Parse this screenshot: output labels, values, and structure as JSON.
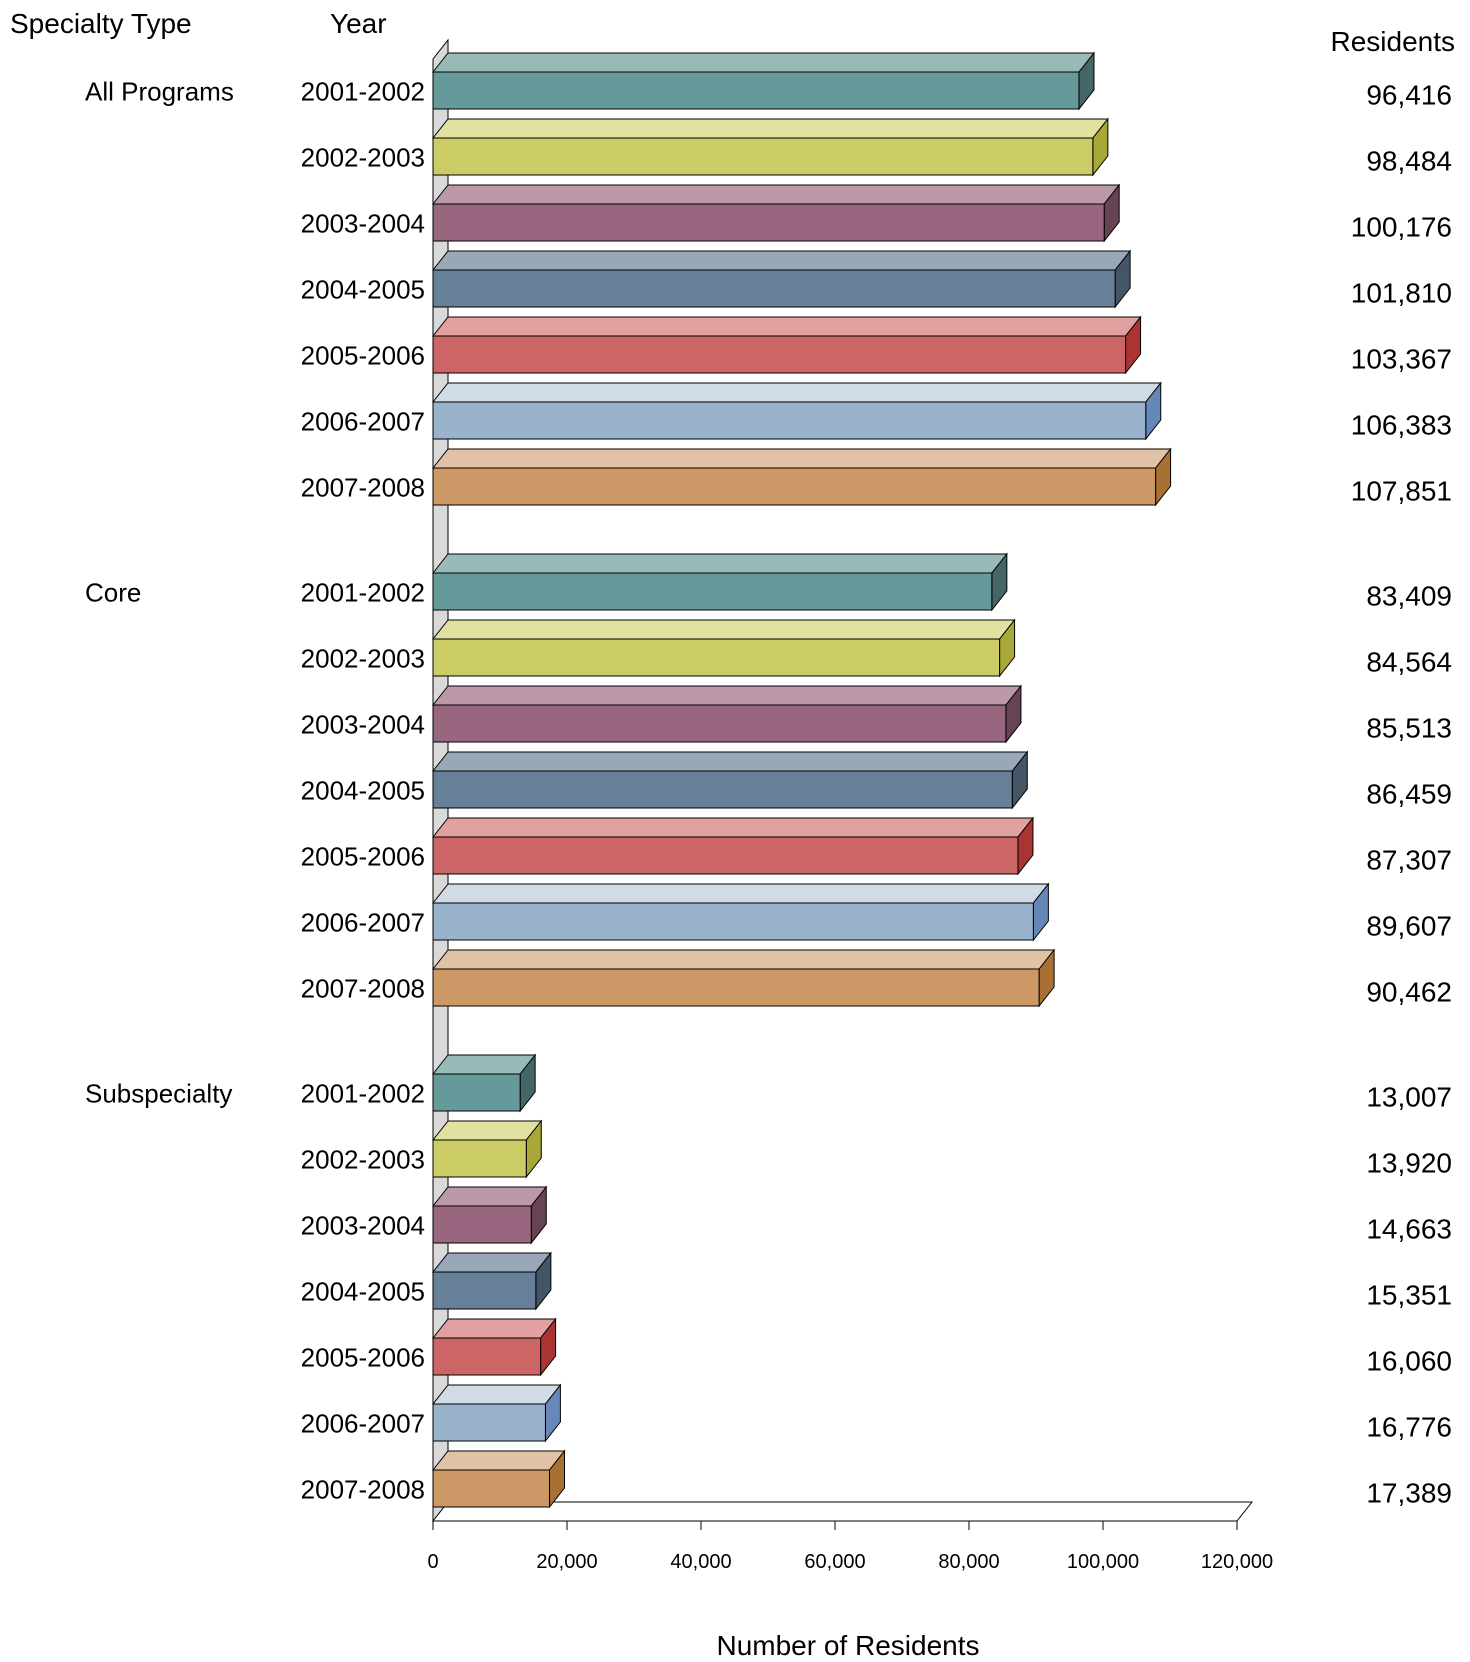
{
  "chart_data": {
    "type": "bar",
    "orientation": "horizontal",
    "style": "3d",
    "header": {
      "specialty_type": "Specialty Type",
      "year": "Year",
      "residents": "Residents"
    },
    "xlabel": "Number of Residents",
    "xlim": [
      0,
      120000
    ],
    "xticks": [
      "0",
      "20,000",
      "40,000",
      "60,000",
      "80,000",
      "100,000",
      "120,000"
    ],
    "grid": false,
    "legend": "none",
    "groups": [
      {
        "name": "All Programs",
        "bars": [
          {
            "year": "2001-2002",
            "value": 96416,
            "label": "96,416"
          },
          {
            "year": "2002-2003",
            "value": 98484,
            "label": "98,484"
          },
          {
            "year": "2003-2004",
            "value": 100176,
            "label": "100,176"
          },
          {
            "year": "2004-2005",
            "value": 101810,
            "label": "101,810"
          },
          {
            "year": "2005-2006",
            "value": 103367,
            "label": "103,367"
          },
          {
            "year": "2006-2007",
            "value": 106383,
            "label": "106,383"
          },
          {
            "year": "2007-2008",
            "value": 107851,
            "label": "107,851"
          }
        ]
      },
      {
        "name": "Core",
        "bars": [
          {
            "year": "2001-2002",
            "value": 83409,
            "label": "83,409"
          },
          {
            "year": "2002-2003",
            "value": 84564,
            "label": "84,564"
          },
          {
            "year": "2003-2004",
            "value": 85513,
            "label": "85,513"
          },
          {
            "year": "2004-2005",
            "value": 86459,
            "label": "86,459"
          },
          {
            "year": "2005-2006",
            "value": 87307,
            "label": "87,307"
          },
          {
            "year": "2006-2007",
            "value": 89607,
            "label": "89,607"
          },
          {
            "year": "2007-2008",
            "value": 90462,
            "label": "90,462"
          }
        ]
      },
      {
        "name": "Subspecialty",
        "bars": [
          {
            "year": "2001-2002",
            "value": 13007,
            "label": "13,007"
          },
          {
            "year": "2002-2003",
            "value": 13920,
            "label": "13,920"
          },
          {
            "year": "2003-2004",
            "value": 14663,
            "label": "14,663"
          },
          {
            "year": "2004-2005",
            "value": 15351,
            "label": "15,351"
          },
          {
            "year": "2005-2006",
            "value": 16060,
            "label": "16,060"
          },
          {
            "year": "2006-2007",
            "value": 16776,
            "label": "16,776"
          },
          {
            "year": "2007-2008",
            "value": 17389,
            "label": "17,389"
          }
        ]
      }
    ],
    "year_colors": [
      {
        "front": "#669999",
        "top": "#99bbb8",
        "side": "#446666"
      },
      {
        "front": "#cccc66",
        "top": "#e2e2a0",
        "side": "#a8a838"
      },
      {
        "front": "#996680",
        "top": "#bb99a8",
        "side": "#664455"
      },
      {
        "front": "#668099",
        "top": "#99a8b8",
        "side": "#445566"
      },
      {
        "front": "#cc6666",
        "top": "#e2a0a0",
        "side": "#aa3333"
      },
      {
        "front": "#99b3cc",
        "top": "#d0dbe6",
        "side": "#6688b8"
      },
      {
        "front": "#cc9966",
        "top": "#e2c2a5",
        "side": "#a87033"
      }
    ]
  }
}
